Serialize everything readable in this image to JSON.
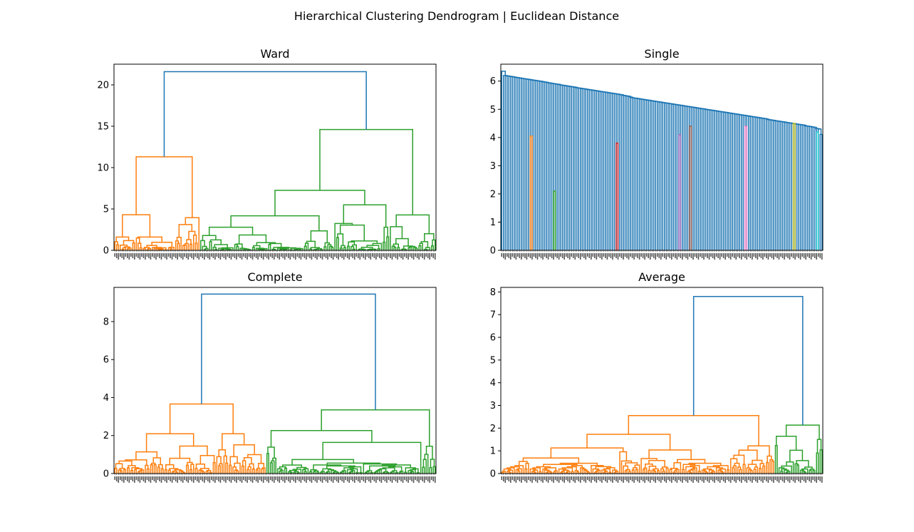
{
  "figure": {
    "suptitle": "Hierarchical Clustering Dendrogram | Euclidean Distance"
  },
  "chart_data": [
    {
      "type": "dendrogram",
      "title": "Ward",
      "ylim": [
        0,
        22.5
      ],
      "yticks": [
        0,
        5,
        10,
        15,
        20
      ],
      "n_leaves": 180,
      "root_height": 21.6,
      "link_color_above": "#1f77b4",
      "grid": false,
      "clusters": [
        {
          "leaves": 48,
          "color": "#ff7f0e",
          "merge_height": 11.3
        },
        {
          "leaves": 132,
          "color": "#2ca02c",
          "merge_height": 14.6
        }
      ]
    },
    {
      "type": "dendrogram",
      "title": "Single",
      "ylim": [
        0,
        6.6
      ],
      "yticks": [
        0,
        1,
        2,
        3,
        4,
        5,
        6
      ],
      "n_leaves": 180,
      "root_height": 6.35,
      "link_color_above": "#1f77b4",
      "grid": false,
      "colored_subclusters": [
        {
          "leaf_pos": 16,
          "height": 4.05,
          "color": "#ff7f0e"
        },
        {
          "leaf_pos": 29,
          "height": 2.1,
          "color": "#2ca02c"
        },
        {
          "leaf_pos": 64,
          "height": 3.8,
          "color": "#d62728"
        },
        {
          "leaf_pos": 99,
          "height": 4.1,
          "color": "#9467bd"
        },
        {
          "leaf_pos": 105,
          "height": 4.4,
          "color": "#8c564b"
        },
        {
          "leaf_pos": 136,
          "height": 4.4,
          "color": "#e377c2"
        },
        {
          "leaf_pos": 163,
          "height": 4.5,
          "color": "#bcbd22"
        },
        {
          "leaf_pos": 176,
          "height": 4.2,
          "color": "#17becf"
        }
      ]
    },
    {
      "type": "dendrogram",
      "title": "Complete",
      "ylim": [
        0,
        9.8
      ],
      "yticks": [
        0,
        2,
        4,
        6,
        8
      ],
      "n_leaves": 180,
      "root_height": 9.45,
      "link_color_above": "#1f77b4",
      "grid": false,
      "cluster_colors": [
        "#ff7f0e",
        "#2ca02c",
        "#d62728",
        "#9467bd",
        "#8c564b",
        "#e377c2",
        "#7f7f7f",
        "#bcbd22",
        "#17becf"
      ]
    },
    {
      "type": "dendrogram",
      "title": "Average",
      "ylim": [
        0,
        8.2
      ],
      "yticks": [
        0,
        1,
        2,
        3,
        4,
        5,
        6,
        7,
        8
      ],
      "n_leaves": 180,
      "root_height": 7.8,
      "link_color_above": "#1f77b4",
      "grid": false,
      "cluster_colors": [
        "#ff7f0e",
        "#2ca02c",
        "#d62728",
        "#9467bd",
        "#8c564b",
        "#e377c2",
        "#7f7f7f",
        "#bcbd22",
        "#17becf"
      ]
    }
  ]
}
